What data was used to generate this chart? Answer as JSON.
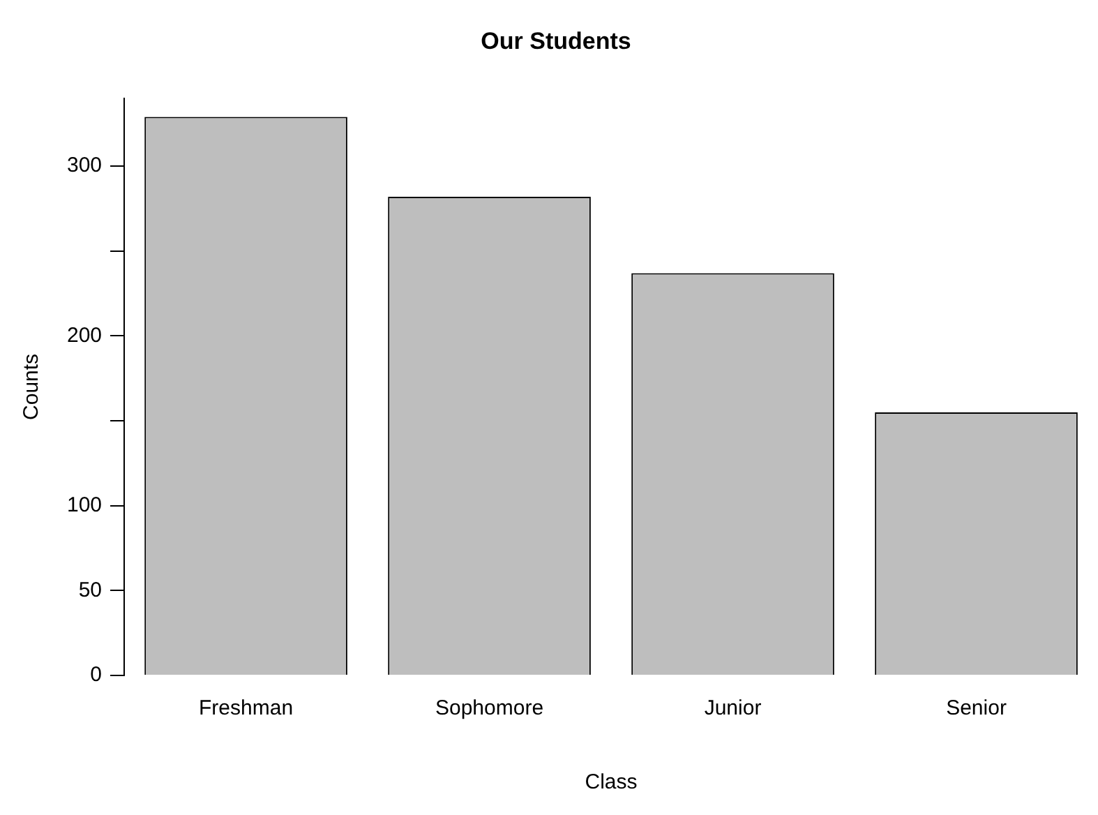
{
  "chart_data": {
    "type": "bar",
    "title": "Our Students",
    "xlabel": "Class",
    "ylabel": "Counts",
    "categories": [
      "Freshman",
      "Sophomore",
      "Junior",
      "Senior"
    ],
    "values": [
      329,
      282,
      237,
      155
    ],
    "color": "#bebebe",
    "ylim": [
      0,
      340
    ],
    "yticks": [
      0,
      50,
      100,
      {
        "value": 150,
        "label": null
      },
      200,
      {
        "value": 250,
        "label": null
      },
      300
    ],
    "grid": false,
    "legend": false
  }
}
